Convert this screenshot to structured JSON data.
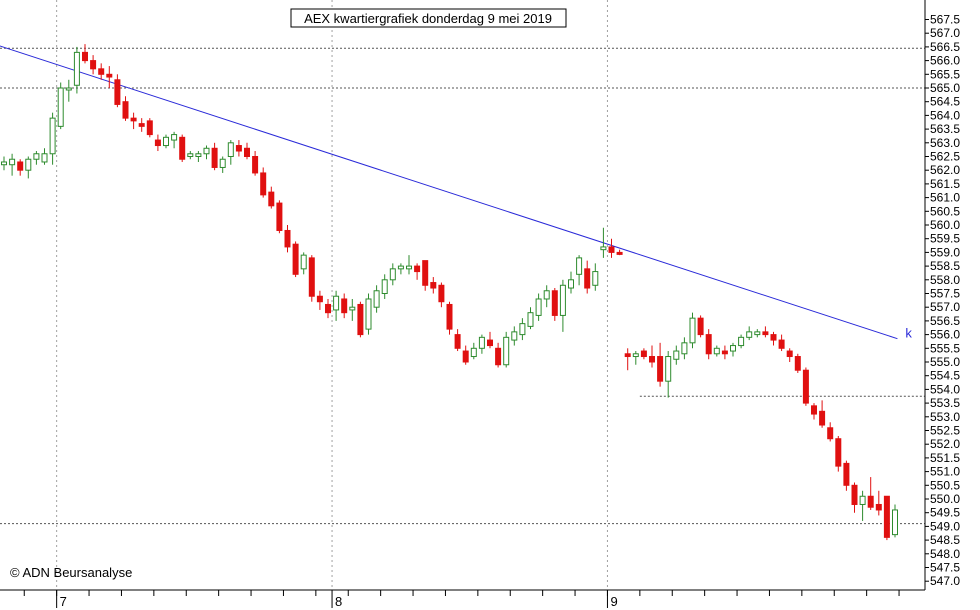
{
  "chart_data": {
    "type": "candlestick",
    "title": "AEX kwartiergrafiek donderdag 9 mei 2019",
    "credit": "© ADN Beursanalyse",
    "ylim": [
      547.0,
      568.0
    ],
    "y_tick_labels": [
      "547.0",
      "547.5",
      "548.0",
      "548.5",
      "549.0",
      "549.5",
      "550.0",
      "550.5",
      "551.0",
      "551.5",
      "552.0",
      "552.5",
      "553.0",
      "553.5",
      "554.0",
      "554.5",
      "555.0",
      "555.5",
      "556.0",
      "556.5",
      "557.0",
      "557.5",
      "558.0",
      "558.5",
      "559.0",
      "559.5",
      "560.0",
      "560.5",
      "561.0",
      "561.5",
      "562.0",
      "562.5",
      "563.0",
      "563.5",
      "564.0",
      "564.5",
      "565.0",
      "565.5",
      "566.0",
      "566.5",
      "567.0",
      "567.5"
    ],
    "day_labels": [
      {
        "label": "7",
        "index": 7
      },
      {
        "label": "8",
        "index": 41
      },
      {
        "label": "9",
        "index": 75
      }
    ],
    "horizontal_lines": [
      {
        "value": 566.45,
        "from_index": 0
      },
      {
        "value": 565.0,
        "from_index": 0
      },
      {
        "value": 549.1,
        "from_index": 0
      },
      {
        "value": 553.75,
        "from_index": 79
      }
    ],
    "vertical_gridlines_at_index": [
      7,
      41,
      75
    ],
    "trendline": {
      "start": {
        "index": -7.4,
        "value": 567.2
      },
      "end": {
        "index": 110.3,
        "value": 555.85
      },
      "label": "k",
      "color": "#2a2ad8"
    },
    "colors": {
      "up": "#2e8b2e",
      "down": "#e01010",
      "trendline": "#2a2ad8",
      "grid": "#a0a0a0",
      "axis": "#000000"
    },
    "candles": [
      {
        "o": 562.2,
        "h": 562.5,
        "l": 562.0,
        "c": 562.3
      },
      {
        "o": 562.2,
        "h": 562.6,
        "l": 561.8,
        "c": 562.4
      },
      {
        "o": 562.3,
        "h": 562.4,
        "l": 561.8,
        "c": 562.0
      },
      {
        "o": 562.0,
        "h": 562.5,
        "l": 561.7,
        "c": 562.4
      },
      {
        "o": 562.4,
        "h": 562.7,
        "l": 562.2,
        "c": 562.6
      },
      {
        "o": 562.3,
        "h": 562.8,
        "l": 562.2,
        "c": 562.6
      },
      {
        "o": 562.6,
        "h": 564.1,
        "l": 562.2,
        "c": 563.9
      },
      {
        "o": 563.6,
        "h": 565.2,
        "l": 563.5,
        "c": 565.0
      },
      {
        "o": 565.0,
        "h": 565.3,
        "l": 564.5,
        "c": 565.0
      },
      {
        "o": 565.1,
        "h": 566.5,
        "l": 564.8,
        "c": 566.3
      },
      {
        "o": 566.3,
        "h": 566.6,
        "l": 565.9,
        "c": 566.0
      },
      {
        "o": 566.0,
        "h": 566.2,
        "l": 565.5,
        "c": 565.7
      },
      {
        "o": 565.7,
        "h": 565.9,
        "l": 565.3,
        "c": 565.5
      },
      {
        "o": 565.5,
        "h": 565.8,
        "l": 565.0,
        "c": 565.4
      },
      {
        "o": 565.3,
        "h": 565.5,
        "l": 564.3,
        "c": 564.4
      },
      {
        "o": 564.5,
        "h": 564.7,
        "l": 563.8,
        "c": 563.9
      },
      {
        "o": 563.9,
        "h": 564.1,
        "l": 563.5,
        "c": 563.8
      },
      {
        "o": 563.7,
        "h": 563.9,
        "l": 563.4,
        "c": 563.6
      },
      {
        "o": 563.8,
        "h": 563.9,
        "l": 563.2,
        "c": 563.3
      },
      {
        "o": 563.1,
        "h": 563.3,
        "l": 562.7,
        "c": 562.9
      },
      {
        "o": 562.9,
        "h": 563.3,
        "l": 562.8,
        "c": 563.2
      },
      {
        "o": 563.1,
        "h": 563.4,
        "l": 562.8,
        "c": 563.3
      },
      {
        "o": 563.2,
        "h": 563.3,
        "l": 562.3,
        "c": 562.4
      },
      {
        "o": 562.5,
        "h": 562.7,
        "l": 562.4,
        "c": 562.6
      },
      {
        "o": 562.5,
        "h": 562.7,
        "l": 562.3,
        "c": 562.6
      },
      {
        "o": 562.6,
        "h": 562.9,
        "l": 562.4,
        "c": 562.8
      },
      {
        "o": 562.8,
        "h": 563.0,
        "l": 562.0,
        "c": 562.1
      },
      {
        "o": 562.1,
        "h": 562.5,
        "l": 561.9,
        "c": 562.4
      },
      {
        "o": 562.5,
        "h": 563.1,
        "l": 562.2,
        "c": 563.0
      },
      {
        "o": 562.9,
        "h": 563.1,
        "l": 562.5,
        "c": 562.7
      },
      {
        "o": 562.8,
        "h": 563.0,
        "l": 562.4,
        "c": 562.5
      },
      {
        "o": 562.5,
        "h": 562.7,
        "l": 561.8,
        "c": 561.9
      },
      {
        "o": 561.9,
        "h": 562.1,
        "l": 561.0,
        "c": 561.1
      },
      {
        "o": 561.2,
        "h": 561.4,
        "l": 560.6,
        "c": 560.7
      },
      {
        "o": 560.8,
        "h": 560.9,
        "l": 559.7,
        "c": 559.8
      },
      {
        "o": 559.8,
        "h": 560.0,
        "l": 559.0,
        "c": 559.2
      },
      {
        "o": 559.3,
        "h": 559.4,
        "l": 558.1,
        "c": 558.2
      },
      {
        "o": 558.4,
        "h": 559.0,
        "l": 558.2,
        "c": 558.9
      },
      {
        "o": 558.8,
        "h": 558.9,
        "l": 557.2,
        "c": 557.4
      },
      {
        "o": 557.4,
        "h": 557.6,
        "l": 556.9,
        "c": 557.2
      },
      {
        "o": 557.1,
        "h": 557.3,
        "l": 556.6,
        "c": 556.8
      },
      {
        "o": 556.9,
        "h": 557.6,
        "l": 556.5,
        "c": 557.4
      },
      {
        "o": 557.3,
        "h": 557.5,
        "l": 556.6,
        "c": 556.8
      },
      {
        "o": 556.9,
        "h": 557.3,
        "l": 556.5,
        "c": 557.0
      },
      {
        "o": 557.1,
        "h": 557.2,
        "l": 555.9,
        "c": 556.0
      },
      {
        "o": 556.2,
        "h": 557.5,
        "l": 556.0,
        "c": 557.3
      },
      {
        "o": 557.0,
        "h": 557.8,
        "l": 556.8,
        "c": 557.6
      },
      {
        "o": 557.5,
        "h": 558.2,
        "l": 557.3,
        "c": 558.0
      },
      {
        "o": 558.0,
        "h": 558.6,
        "l": 557.8,
        "c": 558.4
      },
      {
        "o": 558.4,
        "h": 558.6,
        "l": 558.2,
        "c": 558.5
      },
      {
        "o": 558.4,
        "h": 558.9,
        "l": 558.2,
        "c": 558.5
      },
      {
        "o": 558.5,
        "h": 558.6,
        "l": 558.0,
        "c": 558.3
      },
      {
        "o": 558.7,
        "h": 558.7,
        "l": 557.6,
        "c": 557.8
      },
      {
        "o": 557.9,
        "h": 558.1,
        "l": 557.5,
        "c": 557.7
      },
      {
        "o": 557.8,
        "h": 557.9,
        "l": 557.0,
        "c": 557.2
      },
      {
        "o": 557.1,
        "h": 557.2,
        "l": 556.0,
        "c": 556.2
      },
      {
        "o": 556.0,
        "h": 556.2,
        "l": 555.4,
        "c": 555.5
      },
      {
        "o": 555.4,
        "h": 555.6,
        "l": 554.9,
        "c": 555.0
      },
      {
        "o": 555.2,
        "h": 555.7,
        "l": 555.1,
        "c": 555.5
      },
      {
        "o": 555.5,
        "h": 556.0,
        "l": 555.3,
        "c": 555.9
      },
      {
        "o": 555.8,
        "h": 556.1,
        "l": 555.5,
        "c": 555.6
      },
      {
        "o": 555.5,
        "h": 555.7,
        "l": 554.8,
        "c": 554.9
      },
      {
        "o": 554.9,
        "h": 556.1,
        "l": 554.8,
        "c": 555.9
      },
      {
        "o": 555.8,
        "h": 556.3,
        "l": 555.6,
        "c": 556.1
      },
      {
        "o": 556.0,
        "h": 556.6,
        "l": 555.8,
        "c": 556.4
      },
      {
        "o": 556.3,
        "h": 557.0,
        "l": 556.2,
        "c": 556.8
      },
      {
        "o": 556.7,
        "h": 557.5,
        "l": 556.5,
        "c": 557.3
      },
      {
        "o": 557.3,
        "h": 557.8,
        "l": 557.0,
        "c": 557.6
      },
      {
        "o": 557.6,
        "h": 557.7,
        "l": 556.5,
        "c": 556.7
      },
      {
        "o": 556.7,
        "h": 558.0,
        "l": 556.1,
        "c": 557.8
      },
      {
        "o": 557.7,
        "h": 558.3,
        "l": 557.5,
        "c": 558.0
      },
      {
        "o": 558.2,
        "h": 558.9,
        "l": 557.8,
        "c": 558.8
      },
      {
        "o": 558.4,
        "h": 558.7,
        "l": 557.5,
        "c": 557.7
      },
      {
        "o": 557.8,
        "h": 558.6,
        "l": 557.6,
        "c": 558.3
      },
      {
        "o": 559.1,
        "h": 559.9,
        "l": 558.8,
        "c": 559.2
      },
      {
        "o": 559.2,
        "h": 559.5,
        "l": 558.8,
        "c": 559.0
      },
      {
        "o": 559.0,
        "h": 559.1,
        "l": 558.9,
        "c": 558.95
      },
      {
        "o": 555.3,
        "h": 555.5,
        "l": 554.7,
        "c": 555.2
      },
      {
        "o": 555.2,
        "h": 555.4,
        "l": 554.9,
        "c": 555.3
      },
      {
        "o": 555.4,
        "h": 555.5,
        "l": 555.1,
        "c": 555.2
      },
      {
        "o": 555.2,
        "h": 555.6,
        "l": 554.8,
        "c": 555.0
      },
      {
        "o": 555.2,
        "h": 555.7,
        "l": 554.1,
        "c": 554.3
      },
      {
        "o": 554.3,
        "h": 555.4,
        "l": 553.7,
        "c": 555.2
      },
      {
        "o": 555.1,
        "h": 555.6,
        "l": 554.9,
        "c": 555.4
      },
      {
        "o": 555.3,
        "h": 555.9,
        "l": 555.1,
        "c": 555.7
      },
      {
        "o": 555.7,
        "h": 556.8,
        "l": 555.5,
        "c": 556.6
      },
      {
        "o": 556.6,
        "h": 556.7,
        "l": 555.9,
        "c": 556.0
      },
      {
        "o": 556.0,
        "h": 556.2,
        "l": 555.1,
        "c": 555.3
      },
      {
        "o": 555.3,
        "h": 555.6,
        "l": 555.2,
        "c": 555.5
      },
      {
        "o": 555.4,
        "h": 555.6,
        "l": 555.1,
        "c": 555.3
      },
      {
        "o": 555.4,
        "h": 555.7,
        "l": 555.2,
        "c": 555.6
      },
      {
        "o": 555.6,
        "h": 556.0,
        "l": 555.5,
        "c": 555.9
      },
      {
        "o": 555.9,
        "h": 556.3,
        "l": 555.8,
        "c": 556.1
      },
      {
        "o": 556.0,
        "h": 556.2,
        "l": 555.9,
        "c": 556.1
      },
      {
        "o": 556.1,
        "h": 556.3,
        "l": 555.9,
        "c": 556.0
      },
      {
        "o": 556.0,
        "h": 556.1,
        "l": 555.6,
        "c": 555.8
      },
      {
        "o": 555.8,
        "h": 556.0,
        "l": 555.4,
        "c": 555.5
      },
      {
        "o": 555.4,
        "h": 555.5,
        "l": 555.0,
        "c": 555.2
      },
      {
        "o": 555.2,
        "h": 555.3,
        "l": 554.6,
        "c": 554.7
      },
      {
        "o": 554.7,
        "h": 554.8,
        "l": 553.4,
        "c": 553.5
      },
      {
        "o": 553.4,
        "h": 553.5,
        "l": 552.9,
        "c": 553.1
      },
      {
        "o": 553.2,
        "h": 553.6,
        "l": 552.6,
        "c": 552.7
      },
      {
        "o": 552.6,
        "h": 552.8,
        "l": 552.1,
        "c": 552.2
      },
      {
        "o": 552.2,
        "h": 552.3,
        "l": 551.0,
        "c": 551.2
      },
      {
        "o": 551.3,
        "h": 551.4,
        "l": 550.3,
        "c": 550.5
      },
      {
        "o": 550.5,
        "h": 550.6,
        "l": 549.5,
        "c": 549.8
      },
      {
        "o": 549.8,
        "h": 550.3,
        "l": 549.2,
        "c": 550.1
      },
      {
        "o": 550.1,
        "h": 550.8,
        "l": 549.6,
        "c": 549.7
      },
      {
        "o": 549.8,
        "h": 550.3,
        "l": 549.4,
        "c": 549.6
      },
      {
        "o": 550.1,
        "h": 550.1,
        "l": 548.5,
        "c": 548.6
      },
      {
        "o": 548.7,
        "h": 549.8,
        "l": 548.6,
        "c": 549.6
      }
    ]
  }
}
